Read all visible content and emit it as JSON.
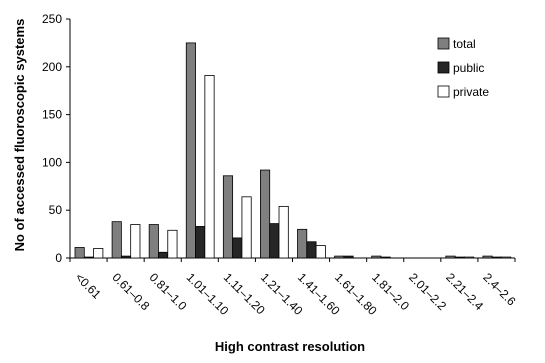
{
  "chart_data": {
    "type": "bar",
    "xlabel": "High contrast resolution",
    "ylabel": "No of accessed fluoroscopic systems",
    "ylim": [
      0,
      250
    ],
    "yticks": [
      0,
      50,
      100,
      150,
      200,
      250
    ],
    "grid": false,
    "legend_position": "top-right",
    "categories": [
      "<0.61",
      "0.61–0.8",
      "0.81–1.0",
      "1.01–1.10",
      "1.11–1.20",
      "1.21–1.40",
      "1.41–1.60",
      "1.61–1.80",
      "1.81–2.0",
      "2.01–2.2",
      "2.21–2.4",
      "2.4–2.6"
    ],
    "series": [
      {
        "name": "total",
        "color": "#7f7f7f",
        "values": [
          11,
          38,
          35,
          225,
          86,
          92,
          30,
          2,
          2,
          0,
          2,
          2
        ]
      },
      {
        "name": "public",
        "color": "#262626",
        "values": [
          1,
          2,
          6,
          33,
          21,
          36,
          17,
          2,
          1,
          0,
          1,
          1
        ]
      },
      {
        "name": "private",
        "color": "#ffffff",
        "values": [
          10,
          35,
          29,
          191,
          64,
          54,
          13,
          0,
          0,
          0,
          1,
          1
        ]
      }
    ]
  }
}
